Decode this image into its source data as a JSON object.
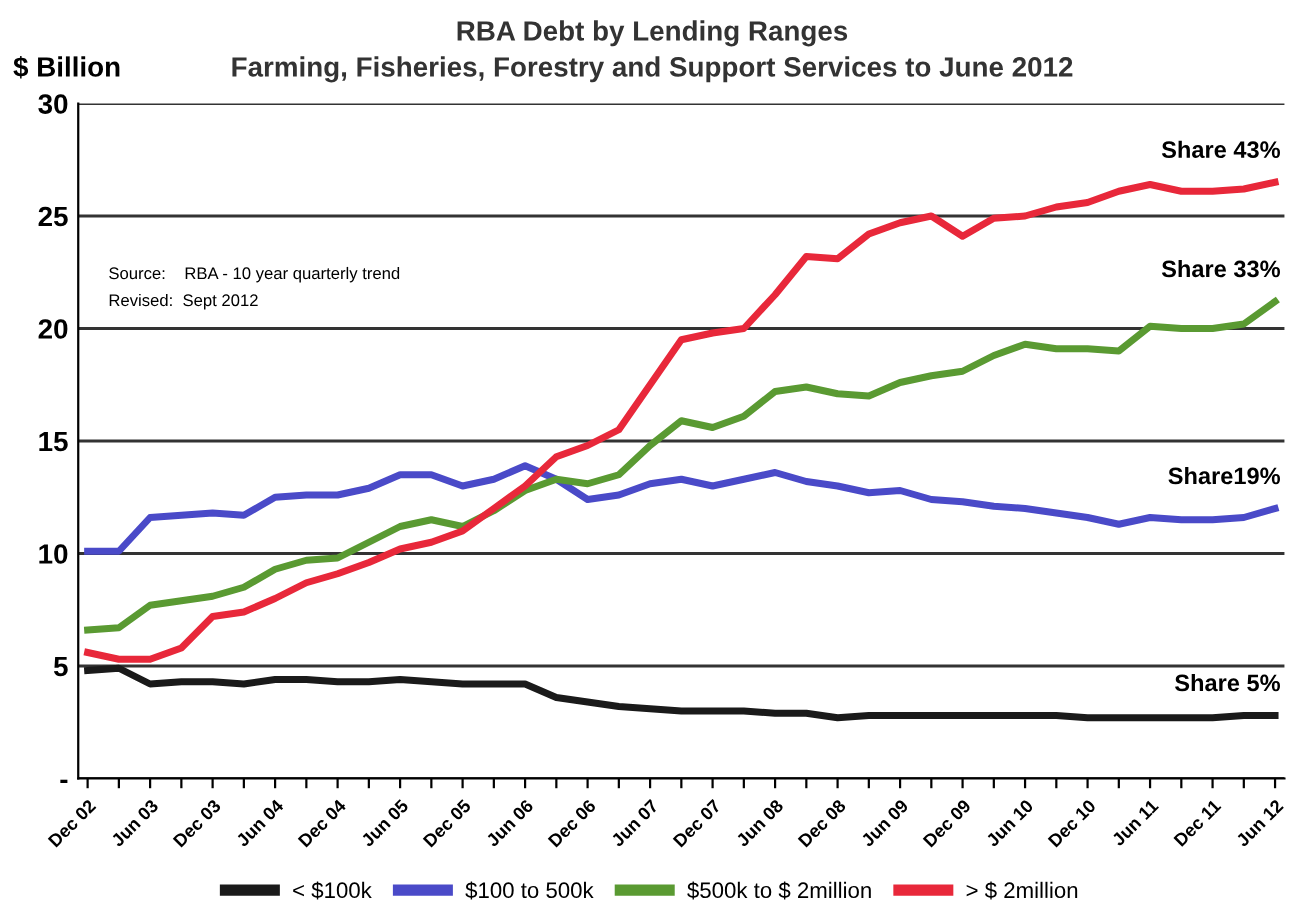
{
  "chart_data": {
    "type": "line",
    "title": "RBA Debt by Lending Ranges",
    "subtitle": "Farming, Fisheries, Forestry and Support Services to June 2012",
    "ylabel": "$ Billion",
    "categories": [
      "Dec 02",
      null,
      "Jun 03",
      null,
      "Dec 03",
      null,
      "Jun 04",
      null,
      "Dec 04",
      null,
      "Jun 05",
      null,
      "Dec 05",
      null,
      "Jun 06",
      null,
      "Dec 06",
      null,
      "Jun 07",
      null,
      "Dec 07",
      null,
      "Jun 08",
      null,
      "Dec 08",
      null,
      "Jun 09",
      null,
      "Dec 09",
      null,
      "Jun 10",
      null,
      "Dec 10",
      null,
      "Jun 11",
      null,
      "Dec 11",
      null,
      "Jun 12"
    ],
    "series": [
      {
        "name": "< $100k",
        "color": "#1a1a1a",
        "values": [
          4.8,
          4.9,
          4.2,
          4.3,
          4.3,
          4.2,
          4.4,
          4.4,
          4.3,
          4.3,
          4.4,
          4.3,
          4.2,
          4.2,
          4.2,
          3.6,
          3.4,
          3.2,
          3.1,
          3.0,
          3.0,
          3.0,
          2.9,
          2.9,
          2.7,
          2.8,
          2.8,
          2.8,
          2.8,
          2.8,
          2.8,
          2.8,
          2.7,
          2.7,
          2.7,
          2.7,
          2.7,
          2.8,
          2.8
        ]
      },
      {
        "name": "$100 to 500k",
        "color": "#4a4ac8",
        "values": [
          10.1,
          10.1,
          11.6,
          11.7,
          11.8,
          11.7,
          12.5,
          12.6,
          12.6,
          12.9,
          13.5,
          13.5,
          13.0,
          13.3,
          13.9,
          13.3,
          12.4,
          12.6,
          13.1,
          13.3,
          13.0,
          13.3,
          13.6,
          13.2,
          13.0,
          12.7,
          12.8,
          12.4,
          12.3,
          12.1,
          12.0,
          11.8,
          11.6,
          11.3,
          11.6,
          11.5,
          11.5,
          11.6,
          12.0
        ]
      },
      {
        "name": "$500k to $ 2million",
        "color": "#5a9a32",
        "values": [
          6.6,
          6.7,
          7.7,
          7.9,
          8.1,
          8.5,
          9.3,
          9.7,
          9.8,
          10.5,
          11.2,
          11.5,
          11.2,
          11.9,
          12.8,
          13.3,
          13.1,
          13.5,
          14.8,
          15.9,
          15.6,
          16.1,
          17.2,
          17.4,
          17.1,
          17.0,
          17.6,
          17.9,
          18.1,
          18.8,
          19.3,
          19.1,
          19.1,
          19.0,
          20.1,
          20.0,
          20.0,
          20.2,
          21.2
        ]
      },
      {
        "name": "> $ 2million",
        "color": "#e8283a",
        "values": [
          5.6,
          5.3,
          5.3,
          5.8,
          7.2,
          7.4,
          8.0,
          8.7,
          9.1,
          9.6,
          10.2,
          10.5,
          11.0,
          12.0,
          13.0,
          14.3,
          14.8,
          15.5,
          17.5,
          19.5,
          19.8,
          20.0,
          21.5,
          23.2,
          23.1,
          24.2,
          24.7,
          25.0,
          24.1,
          24.9,
          25.0,
          25.4,
          25.6,
          26.1,
          26.4,
          26.1,
          26.1,
          26.2,
          26.5
        ]
      }
    ],
    "ylim": [
      0,
      30
    ],
    "yticks": [
      {
        "value": 0,
        "label": "-"
      },
      5,
      10,
      15,
      20,
      25,
      30
    ],
    "grid": "y",
    "legend": "bottom",
    "marker": "none",
    "line_style": "solid",
    "annotations": [
      "Share 43%",
      "Share 33%",
      "Share19%",
      "Share 5%",
      "Source:    RBA - 10 year quarterly trend",
      "Revised:  Sept 2012"
    ]
  }
}
